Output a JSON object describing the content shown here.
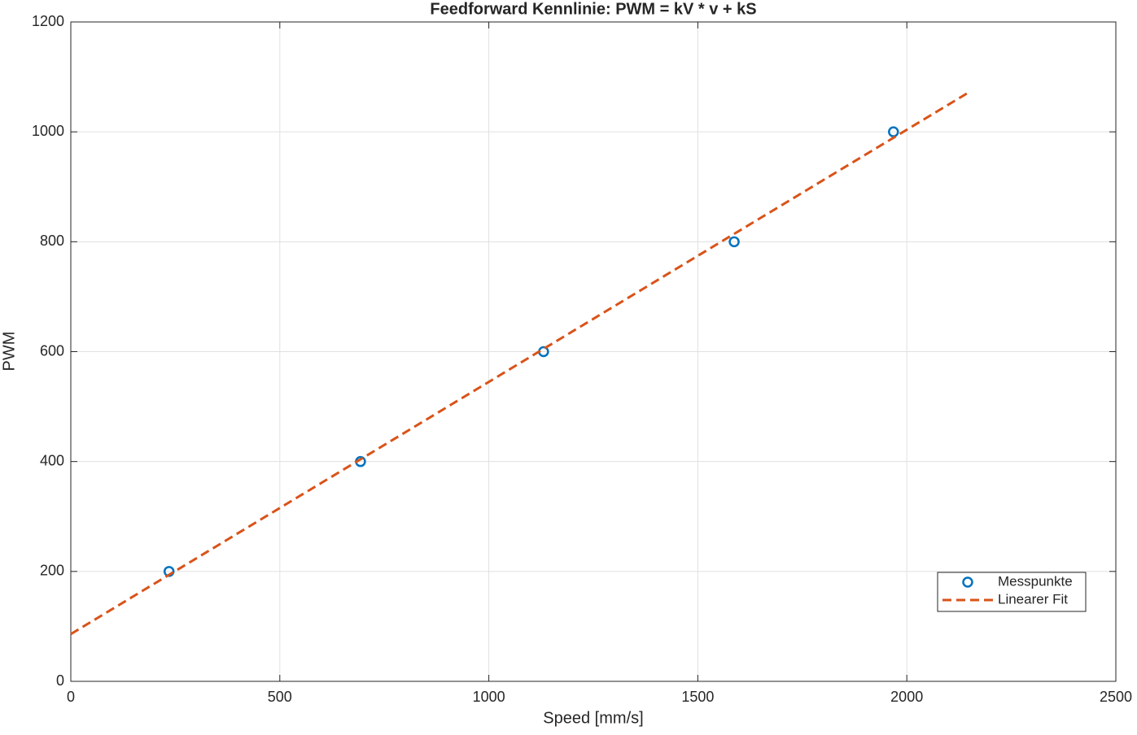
{
  "chart_data": {
    "type": "scatter",
    "title": "Feedforward Kennlinie: PWM = kV * v + kS",
    "xlabel": "Speed [mm/s]",
    "ylabel": "PWM",
    "xlim": [
      0,
      2500
    ],
    "xticks": [
      0,
      500,
      1000,
      1500,
      2000,
      2500
    ],
    "ylim": [
      0,
      1200
    ],
    "yticks": [
      0,
      200,
      400,
      600,
      800,
      1000,
      1200
    ],
    "grid": true,
    "legend": "lower right",
    "series": [
      {
        "name": "Messpunkte",
        "color": "#0072BD",
        "style": "markers",
        "x": [
          235,
          693,
          1131,
          1587,
          1968
        ],
        "values": [
          200,
          400,
          600,
          800,
          1000
        ]
      },
      {
        "name": "Linearer Fit",
        "color": "#D95319",
        "style": "dashed",
        "x": [
          0,
          2144
        ],
        "values": [
          86,
          1070
        ]
      }
    ]
  }
}
